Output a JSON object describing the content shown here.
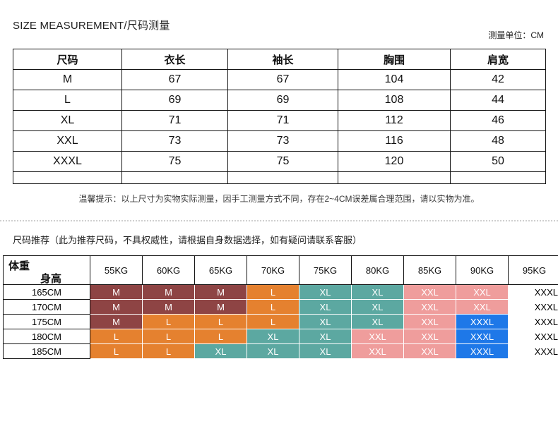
{
  "page": {
    "title": "SIZE MEASUREMENT/尺码测量",
    "unit_note": "测量单位：CM"
  },
  "measurement_table": {
    "headers": [
      "尺码",
      "衣长",
      "袖长",
      "胸围",
      "肩宽"
    ],
    "rows": [
      [
        "M",
        "67",
        "67",
        "104",
        "42"
      ],
      [
        "L",
        "69",
        "69",
        "108",
        "44"
      ],
      [
        "XL",
        "71",
        "71",
        "112",
        "46"
      ],
      [
        "XXL",
        "73",
        "73",
        "116",
        "48"
      ],
      [
        "XXXL",
        "75",
        "75",
        "120",
        "50"
      ]
    ],
    "note": "温馨提示：以上尺寸为实物实际测量，因手工测量方式不同，存在2~4CM误差属合理范围，请以实物为准。"
  },
  "recommendation": {
    "title": "尺码推荐（此为推荐尺码，不具权威性，请根据自身数据选择，如有疑问请联系客服）",
    "corner": {
      "weight_label": "体重",
      "height_label": "身高"
    },
    "weight_headers": [
      "55KG",
      "60KG",
      "65KG",
      "70KG",
      "75KG",
      "80KG",
      "85KG",
      "90KG",
      "95KG"
    ],
    "colors": {
      "maroon": "#8e4444",
      "orange": "#e5812f",
      "teal": "#5ca8a1",
      "pink": "#ef9d9c",
      "blue": "#1e78e8",
      "plain": "#ffffff"
    },
    "rows": [
      {
        "height": "165CM",
        "cells": [
          {
            "label": "M",
            "color": "maroon"
          },
          {
            "label": "M",
            "color": "maroon"
          },
          {
            "label": "M",
            "color": "maroon"
          },
          {
            "label": "L",
            "color": "orange"
          },
          {
            "label": "XL",
            "color": "teal"
          },
          {
            "label": "XL",
            "color": "teal"
          },
          {
            "label": "XXL",
            "color": "pink"
          },
          {
            "label": "XXL",
            "color": "pink"
          },
          {
            "label": "XXXL",
            "color": "plain"
          }
        ]
      },
      {
        "height": "170CM",
        "cells": [
          {
            "label": "M",
            "color": "maroon"
          },
          {
            "label": "M",
            "color": "maroon"
          },
          {
            "label": "M",
            "color": "maroon"
          },
          {
            "label": "L",
            "color": "orange"
          },
          {
            "label": "XL",
            "color": "teal"
          },
          {
            "label": "XL",
            "color": "teal"
          },
          {
            "label": "XXL",
            "color": "pink"
          },
          {
            "label": "XXL",
            "color": "pink"
          },
          {
            "label": "XXXL",
            "color": "plain"
          }
        ]
      },
      {
        "height": "175CM",
        "cells": [
          {
            "label": "M",
            "color": "maroon"
          },
          {
            "label": "L",
            "color": "orange"
          },
          {
            "label": "L",
            "color": "orange"
          },
          {
            "label": "L",
            "color": "orange"
          },
          {
            "label": "XL",
            "color": "teal"
          },
          {
            "label": "XL",
            "color": "teal"
          },
          {
            "label": "XXL",
            "color": "pink"
          },
          {
            "label": "XXXL",
            "color": "blue"
          },
          {
            "label": "XXXL",
            "color": "plain"
          }
        ]
      },
      {
        "height": "180CM",
        "cells": [
          {
            "label": "L",
            "color": "orange"
          },
          {
            "label": "L",
            "color": "orange"
          },
          {
            "label": "L",
            "color": "orange"
          },
          {
            "label": "XL",
            "color": "teal"
          },
          {
            "label": "XL",
            "color": "teal"
          },
          {
            "label": "XXL",
            "color": "pink"
          },
          {
            "label": "XXL",
            "color": "pink"
          },
          {
            "label": "XXXL",
            "color": "blue"
          },
          {
            "label": "XXXL",
            "color": "plain"
          }
        ]
      },
      {
        "height": "185CM",
        "cells": [
          {
            "label": "L",
            "color": "orange"
          },
          {
            "label": "L",
            "color": "orange"
          },
          {
            "label": "XL",
            "color": "teal"
          },
          {
            "label": "XL",
            "color": "teal"
          },
          {
            "label": "XL",
            "color": "teal"
          },
          {
            "label": "XXL",
            "color": "pink"
          },
          {
            "label": "XXL",
            "color": "pink"
          },
          {
            "label": "XXXL",
            "color": "blue"
          },
          {
            "label": "XXXL",
            "color": "plain"
          }
        ]
      }
    ]
  }
}
